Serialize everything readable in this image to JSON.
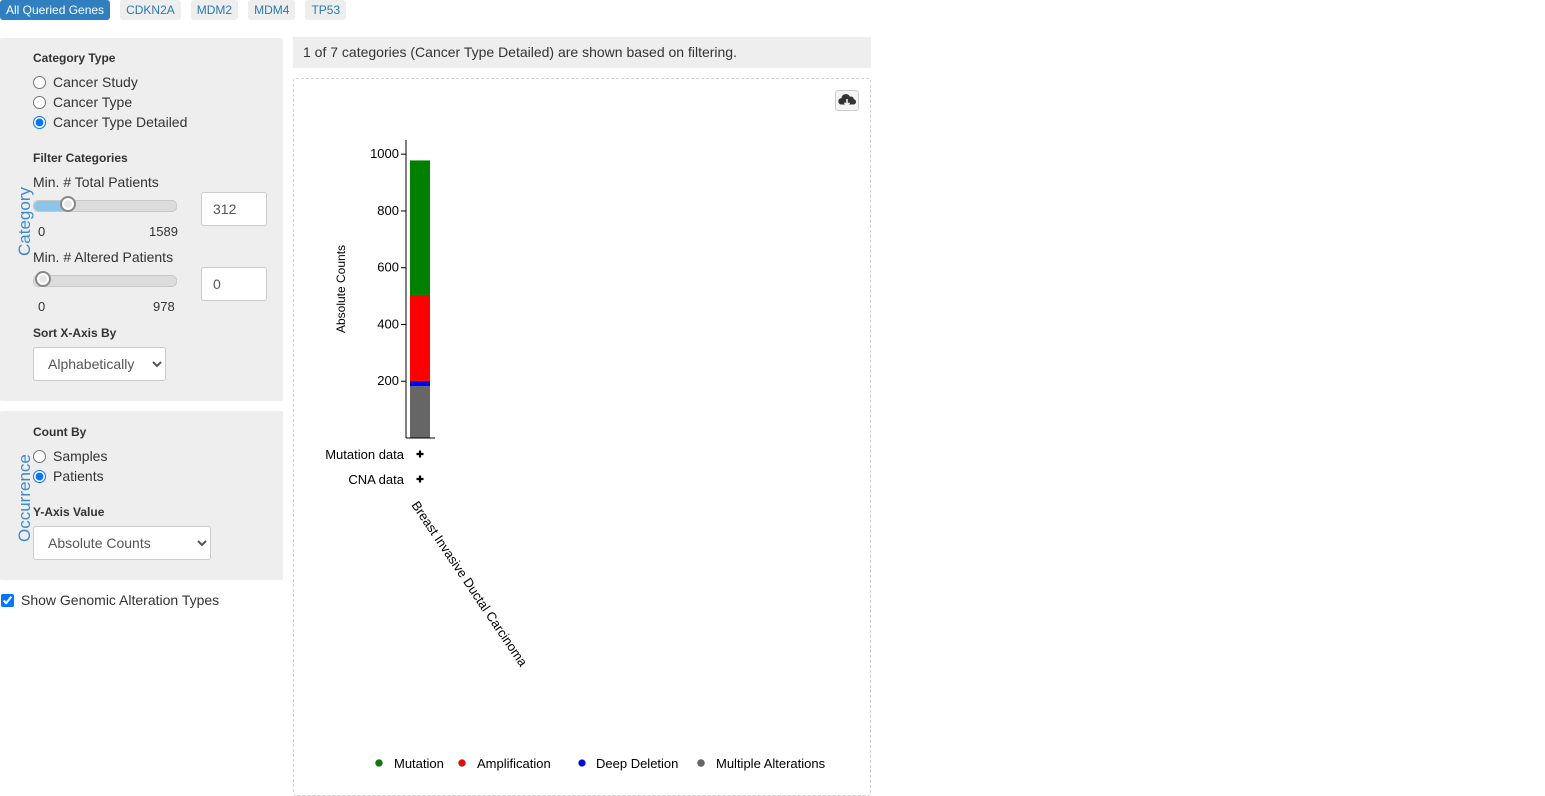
{
  "gene_tabs": [
    "All Queried Genes",
    "CDKN2A",
    "MDM2",
    "MDM4",
    "TP53"
  ],
  "category_panel": {
    "side_label": "Category",
    "category_type_title": "Category Type",
    "category_type_options": [
      "Cancer Study",
      "Cancer Type",
      "Cancer Type Detailed"
    ],
    "category_type_selected": "Cancer Type Detailed",
    "filter_title": "Filter Categories",
    "min_total_label": "Min. # Total Patients",
    "min_total_min": "0",
    "min_total_max": "1589",
    "min_total_value": "312",
    "min_altered_label": "Min. # Altered Patients",
    "min_altered_min": "0",
    "min_altered_max": "978",
    "min_altered_value": "0",
    "sort_title": "Sort X-Axis By",
    "sort_value": "Alphabetically"
  },
  "occurrence_panel": {
    "side_label": "Occurrence",
    "count_by_title": "Count By",
    "count_by_options": [
      "Samples",
      "Patients"
    ],
    "count_by_selected": "Patients",
    "y_axis_title": "Y-Axis Value",
    "y_axis_value": "Absolute Counts"
  },
  "show_alteration_types_label": "Show Genomic Alteration Types",
  "show_alteration_types_checked": true,
  "info_text": "1 of 7 categories (Cancer Type Detailed) are shown based on filtering.",
  "download_icon": "cloud-download-icon",
  "colors": {
    "mutation": "#008000",
    "amplification": "#ff0000",
    "deep_deletion": "#0000ff",
    "multiple": "#666666",
    "accent": "#2f7fc1"
  },
  "chart_data": {
    "type": "bar",
    "stacked": true,
    "ylabel": "Absolute Counts",
    "ylim": [
      0,
      1050
    ],
    "yticks": [
      200,
      400,
      600,
      800,
      1000
    ],
    "categories": [
      "Breast Invasive Ductal Carcinoma"
    ],
    "series": [
      {
        "name": "Multiple Alterations",
        "key": "multiple",
        "values": [
          183
        ]
      },
      {
        "name": "Deep Deletion",
        "key": "deep_deletion",
        "values": [
          18
        ]
      },
      {
        "name": "Amplification",
        "key": "amplification",
        "values": [
          303
        ]
      },
      {
        "name": "Mutation",
        "key": "mutation",
        "values": [
          474
        ]
      }
    ],
    "legend": [
      "Mutation",
      "Amplification",
      "Deep Deletion",
      "Multiple Alterations"
    ],
    "legend_position": "bottom",
    "row_labels": [
      "Mutation data",
      "CNA data"
    ]
  }
}
